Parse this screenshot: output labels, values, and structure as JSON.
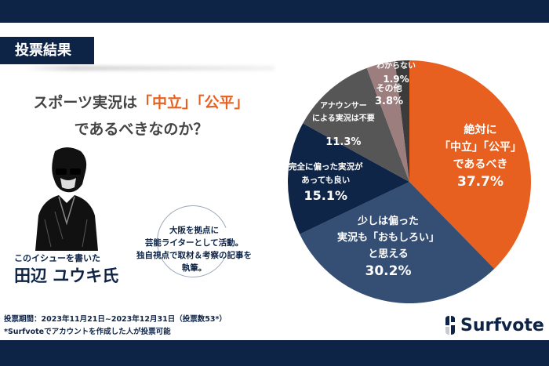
{
  "header": {
    "badge": "投票結果"
  },
  "question": {
    "part1": "スポーツ実況は",
    "highlight": "「中立」「公平」",
    "part2": "であるべきなのか？"
  },
  "writer": {
    "subtitle": "このイシューを書いた",
    "name": "田辺 ユウキ氏",
    "bio": [
      "大阪を拠点に",
      "芸能ライターとして活動。",
      "独自視点で取材＆考察の記事を",
      "執筆。"
    ]
  },
  "footer": {
    "period": "投票期間：2023年11月21日~2023年12月31日（投票数53*）",
    "note": "*Surfvoteでアカウントを作成した人が投票可能"
  },
  "logo": {
    "text": "Surfvote"
  },
  "chart_data": {
    "type": "pie",
    "slices": [
      {
        "label": [
          "絶対に",
          "「中立」「公平」",
          "であるべき"
        ],
        "value": 37.7,
        "display": "37.7%",
        "color": "#e8601f"
      },
      {
        "label": [
          "少しは偏った",
          "実況も「おもしろい」",
          "と思える"
        ],
        "value": 30.2,
        "display": "30.2%",
        "color": "#344e74"
      },
      {
        "label": [
          "完全に偏った実況が",
          "あっても良い"
        ],
        "value": 15.1,
        "display": "15.1%",
        "color": "#0f2548"
      },
      {
        "label": [
          "アナウンサー",
          "による実況は不要"
        ],
        "value": 11.3,
        "display": "11.3%",
        "color": "#565656"
      },
      {
        "label": [
          "その他"
        ],
        "value": 3.8,
        "display": "3.8%",
        "color": "#9c7e7e"
      },
      {
        "label": [
          "わからない"
        ],
        "value": 1.9,
        "display": "1.9%",
        "color": "#3b3b3b"
      }
    ]
  }
}
